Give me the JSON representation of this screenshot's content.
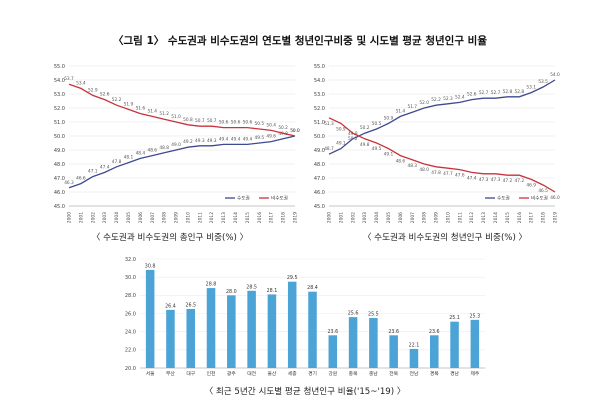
{
  "title": "〈그림 1〉 수도권과 비수도권의 연도별 청년인구비중 및 시도별 평균 청년인구 비율",
  "colors": {
    "capital": "#3d4a8f",
    "noncapital": "#c8323c",
    "bar": "#4ba3d6"
  },
  "chart_data": [
    {
      "type": "line",
      "caption": "〈 수도권과 비수도권의 총인구 비중(%) 〉",
      "x": [
        "2000",
        "2001",
        "2002",
        "2003",
        "2004",
        "2005",
        "2006",
        "2007",
        "2008",
        "2009",
        "2010",
        "2011",
        "2012",
        "2013",
        "2014",
        "2015",
        "2016",
        "2017",
        "2018",
        "2019"
      ],
      "ylim": [
        45.0,
        55.0
      ],
      "yticks": [
        "45.0",
        "46.0",
        "47.0",
        "48.0",
        "49.0",
        "50.0",
        "51.0",
        "52.0",
        "53.0",
        "54.0",
        "55.0"
      ],
      "series": [
        {
          "name": "수도권",
          "values": [
            46.3,
            46.6,
            47.1,
            47.4,
            47.8,
            48.1,
            48.4,
            48.6,
            48.8,
            49.0,
            49.2,
            49.3,
            49.3,
            49.4,
            49.4,
            49.4,
            49.5,
            49.6,
            49.8,
            50.0
          ],
          "labels": [
            "46.3",
            "46.6",
            "47.1",
            "47.4",
            "47.8",
            "48.1",
            "48.4",
            "48.6",
            "48.8",
            "49.0",
            "49.2",
            "49.3",
            "49.3",
            "49.4",
            "49.4",
            "49.4",
            "49.5",
            "49.6",
            "49.8",
            "50.0"
          ]
        },
        {
          "name": "비수도권",
          "values": [
            53.7,
            53.4,
            52.9,
            52.6,
            52.2,
            51.9,
            51.6,
            51.4,
            51.2,
            51.0,
            50.8,
            50.7,
            50.7,
            50.6,
            50.6,
            50.6,
            50.5,
            50.4,
            50.2,
            50.0
          ],
          "labels": [
            "53.7",
            "53.4",
            "52.9",
            "52.6",
            "52.2",
            "51.9",
            "51.6",
            "51.4",
            "51.2",
            "51.0",
            "50.8",
            "50.7",
            "50.7",
            "50.6",
            "50.6",
            "50.6",
            "50.5",
            "50.4",
            "50.2",
            "50.0"
          ]
        }
      ],
      "legend": [
        "수도권",
        "비수도권"
      ],
      "legend_position": "bottom-right"
    },
    {
      "type": "line",
      "caption": "〈 수도권과 비수도권의 청년인구 비중(%) 〉",
      "x": [
        "2000",
        "2001",
        "2002",
        "2003",
        "2004",
        "2005",
        "2006",
        "2007",
        "2008",
        "2009",
        "2010",
        "2011",
        "2012",
        "2013",
        "2014",
        "2015",
        "2016",
        "2017",
        "2018",
        "2019"
      ],
      "ylim": [
        45.0,
        55.0
      ],
      "yticks": [
        "45.0",
        "46.0",
        "47.0",
        "48.0",
        "49.0",
        "50.0",
        "51.0",
        "52.0",
        "53.0",
        "54.0",
        "55.0"
      ],
      "series": [
        {
          "name": "수도권",
          "values": [
            48.7,
            49.1,
            49.8,
            50.2,
            50.5,
            50.9,
            51.4,
            51.7,
            52.0,
            52.2,
            52.3,
            52.4,
            52.6,
            52.7,
            52.7,
            52.8,
            52.8,
            53.1,
            53.5,
            54.0
          ],
          "labels": [
            "48.7",
            "49.1",
            "49.8",
            "50.2",
            "50.5",
            "50.9",
            "51.4",
            "51.7",
            "52.0",
            "52.2",
            "52.3",
            "52.4",
            "52.6",
            "52.7",
            "52.7",
            "52.8",
            "52.8",
            "53.1",
            "53.5",
            "54.0"
          ]
        },
        {
          "name": "비수도권",
          "values": [
            51.3,
            50.9,
            50.2,
            49.8,
            49.5,
            49.1,
            48.6,
            48.3,
            48.0,
            47.8,
            47.7,
            47.6,
            47.4,
            47.3,
            47.3,
            47.2,
            47.2,
            46.9,
            46.5,
            46.0
          ],
          "labels": [
            "51.3",
            "50.9",
            "50.2",
            "49.8",
            "49.5",
            "49.1",
            "48.6",
            "48.3",
            "48.0",
            "47.8",
            "47.7",
            "47.6",
            "47.4",
            "47.3",
            "47.3",
            "47.2",
            "47.2",
            "46.9",
            "46.5",
            "46.0"
          ]
        }
      ],
      "legend": [
        "수도권",
        "비수도권"
      ],
      "legend_position": "bottom-right"
    },
    {
      "type": "bar",
      "caption": "〈 최근 5년간 시도별 평균 청년인구 비율('15~'19) 〉",
      "categories": [
        "서울",
        "부산",
        "대구",
        "인천",
        "광주",
        "대전",
        "울산",
        "세종",
        "경기",
        "강원",
        "충북",
        "충남",
        "전북",
        "전남",
        "경북",
        "경남",
        "제주"
      ],
      "values": [
        30.8,
        26.4,
        26.5,
        28.8,
        28.0,
        28.5,
        28.1,
        29.5,
        28.4,
        23.6,
        25.6,
        25.5,
        23.6,
        22.1,
        23.6,
        25.1,
        25.3
      ],
      "labels": [
        "30.8",
        "26.4",
        "26.5",
        "28.8",
        "28.0",
        "28.5",
        "28.1",
        "29.5",
        "28.4",
        "23.6",
        "25.6",
        "25.5",
        "23.6",
        "22.1",
        "23.6",
        "25.1",
        "25.3"
      ],
      "ylim": [
        20.0,
        32.0
      ],
      "yticks": [
        "20.0",
        "22.0",
        "24.0",
        "26.0",
        "28.0",
        "30.0",
        "32.0"
      ]
    }
  ]
}
